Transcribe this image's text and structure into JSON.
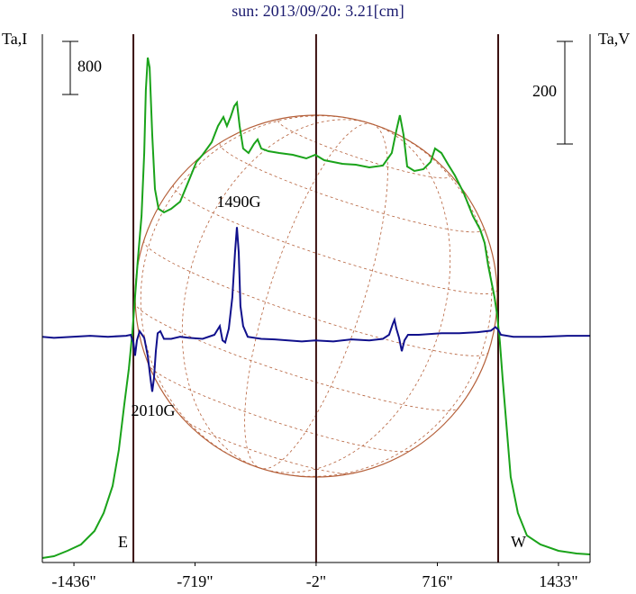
{
  "chart_data": {
    "type": "line",
    "title": "sun: 2013/09/20: 3.21[cm]",
    "ylabel": "Ta,I",
    "y2label": "Ta,V",
    "xlim": [
      -1623,
      1620
    ],
    "xticks": [
      {
        "value": -1436,
        "label": "-1436\""
      },
      {
        "value": -719,
        "label": "-719\""
      },
      {
        "value": -2,
        "label": "-2\""
      },
      {
        "value": 716,
        "label": "716\""
      },
      {
        "value": 1433,
        "label": "1433\""
      }
    ],
    "ylim": [
      0,
      7960
    ],
    "y2lim": [
      -440,
      590
    ],
    "y_scale_bar": 800,
    "y2_scale_bar": 200,
    "vlines": [
      {
        "value": -1084,
        "label": "E"
      },
      {
        "value": -2
      },
      {
        "value": 1076,
        "label": "W"
      }
    ],
    "annotations": [
      "1490G",
      "2010G"
    ],
    "series": [
      {
        "color": "#1aa31a",
        "axis": "y",
        "x": [
          -1623,
          -1554,
          -1474,
          -1394,
          -1314,
          -1260,
          -1207,
          -1170,
          -1138,
          -1111,
          -1090,
          -1074,
          -1058,
          -1036,
          -1020,
          -1010,
          -999,
          -988,
          -972,
          -956,
          -935,
          -903,
          -860,
          -807,
          -754,
          -711,
          -674,
          -620,
          -583,
          -551,
          -530,
          -508,
          -487,
          -471,
          -455,
          -434,
          -402,
          -370,
          -348,
          -327,
          -284,
          -220,
          -140,
          -60,
          -7,
          46,
          100,
          153,
          233,
          313,
          393,
          446,
          473,
          494,
          516,
          537,
          580,
          633,
          676,
          702,
          740,
          777,
          820,
          873,
          926,
          969,
          996,
          1017,
          1038,
          1054,
          1070,
          1086,
          1102,
          1124,
          1150,
          1193,
          1246,
          1326,
          1433,
          1540,
          1620
        ],
        "values": [
          68,
          95,
          176,
          271,
          475,
          746,
          1153,
          1695,
          2373,
          2916,
          3458,
          4000,
          4543,
          5221,
          6170,
          7119,
          7607,
          7458,
          6441,
          5627,
          5329,
          5275,
          5329,
          5438,
          5763,
          6034,
          6143,
          6333,
          6577,
          6712,
          6577,
          6712,
          6875,
          6929,
          6577,
          6238,
          6170,
          6305,
          6373,
          6238,
          6197,
          6170,
          6143,
          6088,
          6143,
          6061,
          6034,
          6007,
          5994,
          5953,
          5980,
          6170,
          6509,
          6739,
          6441,
          5966,
          5899,
          5926,
          6034,
          6238,
          6170,
          6007,
          5831,
          5560,
          5221,
          5017,
          4814,
          4475,
          4204,
          4000,
          3729,
          3322,
          2780,
          2102,
          1288,
          746,
          407,
          271,
          176,
          136,
          122
        ]
      },
      {
        "color": "#10108c",
        "axis": "y2",
        "x": [
          -1623,
          -1554,
          -1447,
          -1340,
          -1234,
          -1127,
          -1100,
          -1084,
          -1074,
          -1063,
          -1047,
          -1020,
          -999,
          -983,
          -972,
          -962,
          -951,
          -940,
          -924,
          -903,
          -860,
          -807,
          -754,
          -674,
          -604,
          -572,
          -556,
          -540,
          -519,
          -498,
          -482,
          -471,
          -460,
          -450,
          -434,
          -407,
          -327,
          -247,
          -167,
          -87,
          -7,
          100,
          206,
          313,
          393,
          430,
          452,
          462,
          473,
          489,
          505,
          521,
          542,
          606,
          740,
          846,
          953,
          1033,
          1060,
          1076,
          1092,
          1166,
          1326,
          1486,
          1620
        ],
        "values": [
          0,
          -2,
          0,
          2,
          0,
          2,
          4,
          -11,
          -37,
          -7,
          11,
          -2,
          -37,
          -81,
          -107,
          -81,
          -28,
          7,
          11,
          -4,
          -4,
          0,
          -2,
          -4,
          4,
          21,
          -7,
          -11,
          16,
          77,
          165,
          214,
          165,
          60,
          21,
          0,
          -4,
          -5,
          -7,
          -9,
          -7,
          -9,
          -5,
          -7,
          -4,
          4,
          25,
          33,
          16,
          -2,
          -28,
          -7,
          4,
          4,
          7,
          7,
          9,
          12,
          19,
          14,
          4,
          0,
          0,
          2,
          2
        ]
      }
    ]
  }
}
